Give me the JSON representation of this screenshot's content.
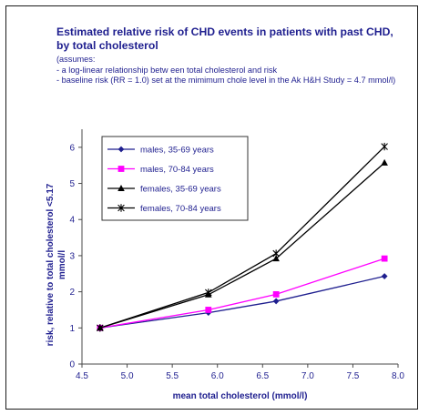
{
  "chart_data": {
    "type": "line",
    "title": "Estimated relative risk of CHD events in patients with past CHD, by total cholesterol",
    "subtitle_lines": [
      "(assumes:",
      "- a log-linear relationship betw een total cholesterol and risk",
      "- baseline risk (RR = 1.0) set at the mimimum chole level in the Ak H&H Study = 4.7 mmol/l)"
    ],
    "xlabel": "mean total cholesterol (mmol/l)",
    "ylabel": "risk, relative to total cholesterol <5.17 mmol/l",
    "xlim": [
      4.5,
      8.0
    ],
    "ylim": [
      0,
      6.5
    ],
    "x_ticks": [
      "4.5",
      "5.0",
      "5.5",
      "6.0",
      "6.5",
      "7.0",
      "7.5",
      "8.0"
    ],
    "y_ticks": [
      "0",
      "1",
      "2",
      "3",
      "4",
      "5",
      "6"
    ],
    "grid": false,
    "legend_position": "top-left",
    "series": [
      {
        "name": "males, 35-69 years",
        "color": "#1f1f8f",
        "marker": "diamond",
        "x": [
          4.7,
          5.9,
          6.65,
          7.85
        ],
        "y": [
          1.0,
          1.42,
          1.74,
          2.43
        ]
      },
      {
        "name": "males, 70-84 years",
        "color": "#ff00ff",
        "marker": "square",
        "x": [
          4.7,
          5.9,
          6.65,
          7.85
        ],
        "y": [
          1.0,
          1.5,
          1.93,
          2.92
        ]
      },
      {
        "name": "females, 35-69 years",
        "color": "#000000",
        "marker": "triangle",
        "x": [
          4.7,
          5.9,
          6.65,
          7.85
        ],
        "y": [
          1.0,
          1.92,
          2.92,
          5.57
        ]
      },
      {
        "name": "females, 70-84 years",
        "color": "#000000",
        "marker": "star",
        "x": [
          4.7,
          5.9,
          6.65,
          7.85
        ],
        "y": [
          1.0,
          1.98,
          3.06,
          6.02
        ]
      }
    ]
  }
}
